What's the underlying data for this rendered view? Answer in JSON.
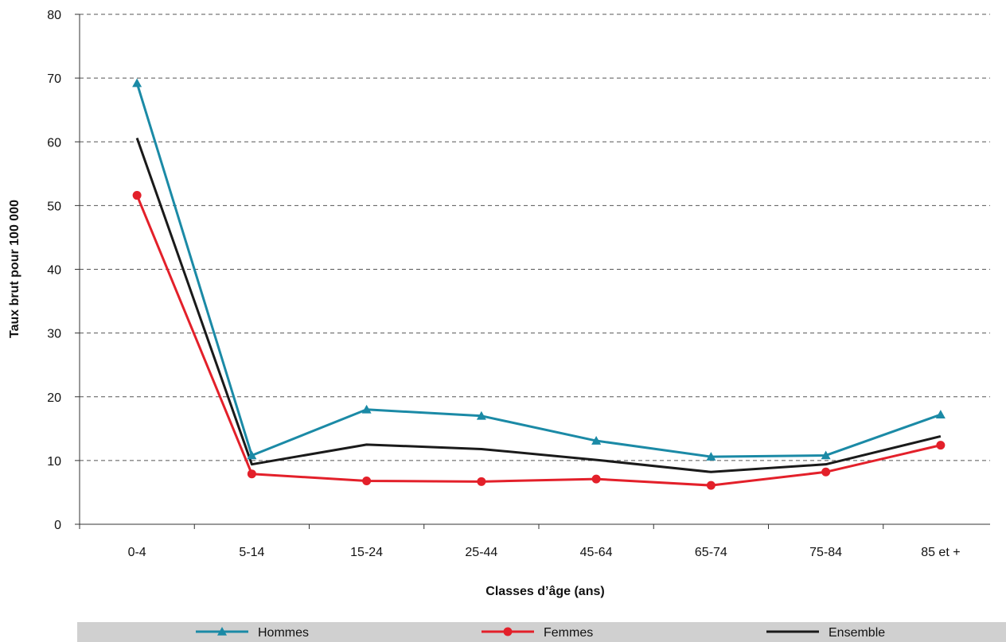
{
  "chart_data": {
    "type": "line",
    "title": "",
    "xlabel": "Classes d’âge (ans)",
    "ylabel": "Taux brut pour 100 000",
    "categories": [
      "0-4",
      "5-14",
      "15-24",
      "25-44",
      "45-64",
      "65-74",
      "75-84",
      "85 et +"
    ],
    "ylim": [
      0,
      80
    ],
    "yticks": [
      0,
      10,
      20,
      30,
      40,
      50,
      60,
      70,
      80
    ],
    "grid": "horizontal dashed",
    "legend_position": "bottom",
    "series": [
      {
        "name": "Hommes",
        "color": "#1b8aa6",
        "marker": "triangle",
        "values": [
          69.2,
          10.8,
          18.0,
          17.0,
          13.1,
          10.6,
          10.8,
          17.2
        ]
      },
      {
        "name": "Femmes",
        "color": "#e3202a",
        "marker": "circle",
        "values": [
          51.6,
          7.9,
          6.8,
          6.7,
          7.1,
          6.1,
          8.2,
          12.4
        ]
      },
      {
        "name": "Ensemble",
        "color": "#1a1a1a",
        "marker": "none",
        "values": [
          60.6,
          9.4,
          12.5,
          11.8,
          10.1,
          8.2,
          9.4,
          13.8
        ]
      }
    ]
  }
}
